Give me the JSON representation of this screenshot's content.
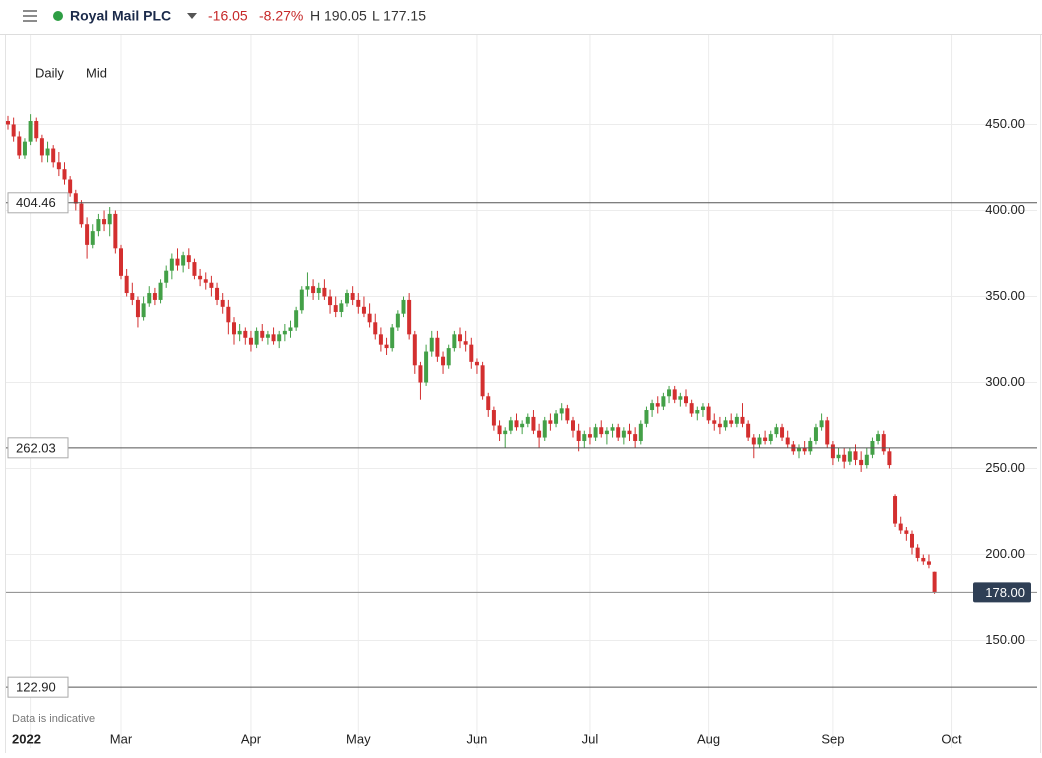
{
  "header": {
    "instrument": "Royal Mail PLC",
    "change": "-16.05",
    "change_pct": "-8.27%",
    "high": "H 190.05",
    "low": "L 177.15"
  },
  "chart_data": {
    "type": "candlestick",
    "controls": [
      "Daily",
      "Mid"
    ],
    "note": "Data is indicative",
    "up_color": "#43a047",
    "down_color": "#d32f2f",
    "ylim": [
      98,
      502
    ],
    "yticks": [
      {
        "value": 150,
        "label": "150.00"
      },
      {
        "value": 200,
        "label": "200.00"
      },
      {
        "value": 250,
        "label": "250.00"
      },
      {
        "value": 300,
        "label": "300.00"
      },
      {
        "value": 350,
        "label": "350.00"
      },
      {
        "value": 400,
        "label": "400.00"
      },
      {
        "value": 450,
        "label": "450.00"
      }
    ],
    "xticks": [
      {
        "value": 4,
        "label": "2022"
      },
      {
        "value": 20,
        "label": "Mar"
      },
      {
        "value": 43,
        "label": "Apr"
      },
      {
        "value": 62,
        "label": "May"
      },
      {
        "value": 83,
        "label": "Jun"
      },
      {
        "value": 103,
        "label": "Jul"
      },
      {
        "value": 124,
        "label": "Aug"
      },
      {
        "value": 146,
        "label": "Sep"
      },
      {
        "value": 167,
        "label": "Oct"
      }
    ],
    "xlim": [
      0,
      169
    ],
    "grid": true,
    "price_lines": [
      {
        "value": 404.46,
        "label": "404.46"
      },
      {
        "value": 262.03,
        "label": "262.03"
      },
      {
        "value": 122.9,
        "label": "122.90"
      }
    ],
    "last_price": {
      "value": 178,
      "label": "178.00"
    },
    "ohlc": [
      [
        452,
        455,
        447,
        450
      ],
      [
        450,
        454,
        440,
        443
      ],
      [
        443,
        446,
        430,
        432
      ],
      [
        432,
        442,
        430,
        440
      ],
      [
        440,
        456,
        438,
        452
      ],
      [
        452,
        454,
        440,
        442
      ],
      [
        442,
        444,
        428,
        432
      ],
      [
        432,
        440,
        428,
        436
      ],
      [
        436,
        438,
        425,
        428
      ],
      [
        428,
        434,
        420,
        424
      ],
      [
        424,
        428,
        415,
        418
      ],
      [
        418,
        420,
        408,
        410
      ],
      [
        410,
        412,
        400,
        404
      ],
      [
        404,
        406,
        390,
        392
      ],
      [
        392,
        396,
        372,
        380
      ],
      [
        380,
        392,
        378,
        388
      ],
      [
        388,
        398,
        385,
        395
      ],
      [
        395,
        400,
        388,
        392
      ],
      [
        392,
        402,
        385,
        398
      ],
      [
        398,
        400,
        375,
        378
      ],
      [
        378,
        380,
        360,
        362
      ],
      [
        362,
        366,
        350,
        352
      ],
      [
        352,
        358,
        345,
        348
      ],
      [
        348,
        350,
        332,
        338
      ],
      [
        338,
        350,
        336,
        346
      ],
      [
        346,
        356,
        344,
        352
      ],
      [
        352,
        355,
        345,
        348
      ],
      [
        348,
        360,
        346,
        358
      ],
      [
        358,
        368,
        355,
        365
      ],
      [
        365,
        375,
        360,
        372
      ],
      [
        372,
        378,
        365,
        368
      ],
      [
        368,
        376,
        364,
        374
      ],
      [
        374,
        378,
        366,
        370
      ],
      [
        370,
        372,
        360,
        362
      ],
      [
        362,
        366,
        356,
        360
      ],
      [
        360,
        364,
        354,
        358
      ],
      [
        358,
        362,
        350,
        355
      ],
      [
        355,
        358,
        345,
        348
      ],
      [
        348,
        352,
        340,
        344
      ],
      [
        344,
        348,
        328,
        335
      ],
      [
        335,
        338,
        322,
        328
      ],
      [
        328,
        334,
        324,
        330
      ],
      [
        330,
        332,
        322,
        326
      ],
      [
        326,
        330,
        318,
        322
      ],
      [
        322,
        332,
        320,
        330
      ],
      [
        330,
        334,
        324,
        326
      ],
      [
        326,
        330,
        322,
        328
      ],
      [
        328,
        332,
        322,
        324
      ],
      [
        324,
        330,
        320,
        328
      ],
      [
        328,
        334,
        324,
        330
      ],
      [
        330,
        336,
        326,
        332
      ],
      [
        332,
        344,
        330,
        342
      ],
      [
        342,
        356,
        340,
        354
      ],
      [
        354,
        364,
        350,
        356
      ],
      [
        356,
        360,
        348,
        352
      ],
      [
        352,
        358,
        348,
        355
      ],
      [
        355,
        360,
        348,
        350
      ],
      [
        350,
        354,
        340,
        345
      ],
      [
        345,
        350,
        338,
        341
      ],
      [
        341,
        348,
        338,
        346
      ],
      [
        346,
        354,
        344,
        352
      ],
      [
        352,
        356,
        345,
        348
      ],
      [
        348,
        352,
        340,
        344
      ],
      [
        344,
        350,
        338,
        340
      ],
      [
        340,
        346,
        332,
        335
      ],
      [
        335,
        340,
        325,
        328
      ],
      [
        328,
        332,
        318,
        322
      ],
      [
        322,
        326,
        316,
        320
      ],
      [
        320,
        334,
        318,
        332
      ],
      [
        332,
        342,
        330,
        340
      ],
      [
        340,
        350,
        338,
        348
      ],
      [
        348,
        352,
        325,
        328
      ],
      [
        328,
        330,
        305,
        310
      ],
      [
        310,
        312,
        290,
        300
      ],
      [
        300,
        322,
        298,
        318
      ],
      [
        318,
        330,
        315,
        326
      ],
      [
        326,
        330,
        312,
        315
      ],
      [
        315,
        318,
        305,
        310
      ],
      [
        310,
        322,
        308,
        320
      ],
      [
        320,
        330,
        318,
        328
      ],
      [
        328,
        332,
        320,
        324
      ],
      [
        324,
        330,
        318,
        322
      ],
      [
        322,
        326,
        308,
        312
      ],
      [
        312,
        314,
        305,
        310
      ],
      [
        310,
        312,
        290,
        292
      ],
      [
        292,
        294,
        280,
        284
      ],
      [
        284,
        286,
        272,
        275
      ],
      [
        275,
        278,
        266,
        270
      ],
      [
        270,
        274,
        262,
        272
      ],
      [
        272,
        280,
        270,
        278
      ],
      [
        278,
        282,
        272,
        274
      ],
      [
        274,
        278,
        270,
        276
      ],
      [
        276,
        282,
        274,
        280
      ],
      [
        280,
        284,
        270,
        272
      ],
      [
        272,
        276,
        262,
        268
      ],
      [
        268,
        280,
        266,
        278
      ],
      [
        278,
        282,
        272,
        276
      ],
      [
        276,
        284,
        274,
        282
      ],
      [
        282,
        288,
        278,
        285
      ],
      [
        285,
        287,
        276,
        278
      ],
      [
        278,
        280,
        268,
        272
      ],
      [
        272,
        276,
        260,
        266
      ],
      [
        266,
        272,
        262,
        270
      ],
      [
        270,
        274,
        264,
        268
      ],
      [
        268,
        276,
        266,
        274
      ],
      [
        274,
        278,
        268,
        270
      ],
      [
        270,
        274,
        264,
        272
      ],
      [
        272,
        276,
        268,
        274
      ],
      [
        274,
        276,
        266,
        268
      ],
      [
        268,
        274,
        264,
        272
      ],
      [
        272,
        276,
        266,
        270
      ],
      [
        270,
        274,
        262,
        266
      ],
      [
        266,
        278,
        264,
        276
      ],
      [
        276,
        286,
        274,
        284
      ],
      [
        284,
        290,
        280,
        288
      ],
      [
        288,
        292,
        282,
        286
      ],
      [
        286,
        294,
        284,
        292
      ],
      [
        292,
        298,
        288,
        296
      ],
      [
        296,
        298,
        288,
        290
      ],
      [
        290,
        294,
        286,
        292
      ],
      [
        292,
        296,
        286,
        288
      ],
      [
        288,
        290,
        280,
        282
      ],
      [
        282,
        286,
        278,
        284
      ],
      [
        284,
        288,
        280,
        286
      ],
      [
        286,
        288,
        276,
        278
      ],
      [
        278,
        282,
        272,
        276
      ],
      [
        276,
        280,
        270,
        274
      ],
      [
        274,
        280,
        272,
        278
      ],
      [
        278,
        282,
        274,
        276
      ],
      [
        276,
        282,
        274,
        280
      ],
      [
        280,
        288,
        274,
        276
      ],
      [
        276,
        278,
        266,
        268
      ],
      [
        268,
        270,
        256,
        264
      ],
      [
        264,
        270,
        262,
        268
      ],
      [
        268,
        272,
        264,
        266
      ],
      [
        266,
        272,
        264,
        270
      ],
      [
        270,
        276,
        268,
        274
      ],
      [
        274,
        276,
        266,
        268
      ],
      [
        268,
        272,
        262,
        264
      ],
      [
        264,
        266,
        258,
        260
      ],
      [
        260,
        264,
        256,
        262
      ],
      [
        262,
        266,
        258,
        260
      ],
      [
        260,
        268,
        258,
        266
      ],
      [
        266,
        276,
        264,
        274
      ],
      [
        274,
        282,
        272,
        278
      ],
      [
        278,
        280,
        262,
        264
      ],
      [
        264,
        266,
        252,
        256
      ],
      [
        256,
        262,
        254,
        258
      ],
      [
        258,
        262,
        250,
        254
      ],
      [
        254,
        262,
        252,
        260
      ],
      [
        260,
        264,
        252,
        255
      ],
      [
        255,
        260,
        248,
        252
      ],
      [
        252,
        262,
        250,
        258
      ],
      [
        258,
        268,
        256,
        266
      ],
      [
        266,
        272,
        264,
        270
      ],
      [
        270,
        272,
        258,
        260
      ],
      [
        260,
        262,
        250,
        252
      ],
      [
        234,
        235,
        216,
        218
      ],
      [
        218,
        222,
        212,
        214
      ],
      [
        214,
        216,
        208,
        212
      ],
      [
        212,
        214,
        200,
        204
      ],
      [
        204,
        206,
        196,
        198
      ],
      [
        198,
        200,
        194,
        196
      ],
      [
        196,
        200,
        192,
        194.05
      ],
      [
        190,
        190.05,
        177.15,
        178
      ]
    ]
  }
}
